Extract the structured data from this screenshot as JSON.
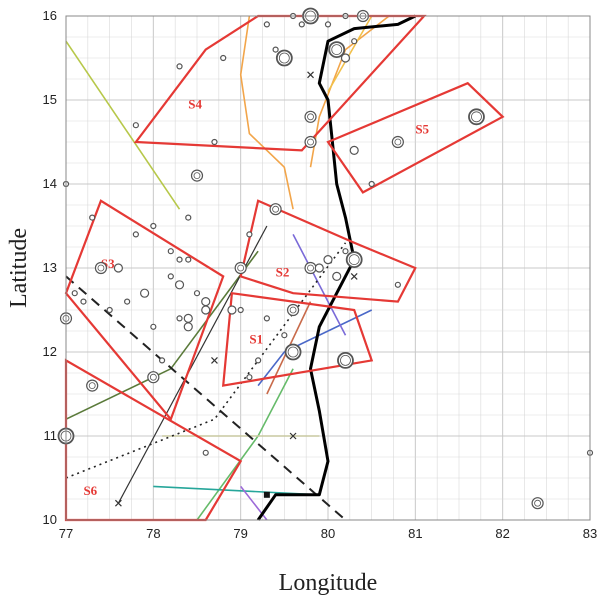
{
  "chart_data": {
    "type": "scatter",
    "xlabel": "Longitude",
    "ylabel": "Latitude",
    "xlim": [
      77,
      83
    ],
    "ylim": [
      10,
      16
    ],
    "xticks": [
      "77",
      "78",
      "79",
      "80",
      "81",
      "82",
      "83"
    ],
    "yticks": [
      "10",
      "11",
      "12",
      "13",
      "14",
      "15",
      "16"
    ],
    "grid": true,
    "colors": {
      "zone": "#e53935",
      "coast": "#000000",
      "epicenter": "#555555",
      "grid": "#d9d9d9"
    },
    "zones": [
      {
        "label": "S1",
        "points": [
          [
            78.8,
            11.6
          ],
          [
            80.5,
            11.9
          ],
          [
            80.3,
            12.5
          ],
          [
            78.9,
            12.7
          ]
        ],
        "label_at": [
          79.1,
          12.1
        ]
      },
      {
        "label": "S2",
        "points": [
          [
            79.0,
            12.9
          ],
          [
            79.2,
            13.8
          ],
          [
            80.3,
            13.3
          ],
          [
            81.0,
            13.0
          ],
          [
            80.8,
            12.6
          ],
          [
            79.6,
            12.7
          ]
        ],
        "label_at": [
          79.4,
          12.9
        ]
      },
      {
        "label": "S3",
        "points": [
          [
            77.0,
            12.7
          ],
          [
            77.4,
            13.8
          ],
          [
            78.8,
            12.9
          ],
          [
            78.2,
            11.2
          ]
        ],
        "label_at": [
          77.4,
          13.0
        ]
      },
      {
        "label": "S4",
        "points": [
          [
            77.8,
            14.5
          ],
          [
            78.6,
            15.6
          ],
          [
            79.2,
            16.0
          ],
          [
            81.1,
            16.0
          ],
          [
            79.7,
            14.4
          ]
        ],
        "label_at": [
          78.4,
          14.9
        ]
      },
      {
        "label": "S5",
        "points": [
          [
            80.0,
            14.5
          ],
          [
            81.6,
            15.2
          ],
          [
            82.0,
            14.8
          ],
          [
            80.4,
            13.9
          ]
        ],
        "label_at": [
          81.0,
          14.6
        ]
      },
      {
        "label": "S6",
        "points": [
          [
            77.0,
            10.0
          ],
          [
            77.0,
            11.9
          ],
          [
            79.0,
            10.7
          ],
          [
            78.6,
            10.0
          ]
        ],
        "label_at": [
          77.2,
          10.3
        ]
      }
    ],
    "coastline": [
      [
        79.2,
        10.0
      ],
      [
        79.4,
        10.3
      ],
      [
        79.6,
        10.3
      ],
      [
        79.9,
        10.3
      ],
      [
        80.0,
        10.7
      ],
      [
        79.9,
        11.3
      ],
      [
        79.8,
        11.8
      ],
      [
        79.9,
        12.3
      ],
      [
        80.1,
        12.7
      ],
      [
        80.3,
        13.1
      ],
      [
        80.2,
        13.6
      ],
      [
        80.1,
        14.0
      ],
      [
        80.05,
        14.5
      ],
      [
        80.0,
        15.0
      ],
      [
        79.9,
        15.2
      ],
      [
        80.0,
        15.7
      ],
      [
        80.3,
        15.85
      ],
      [
        80.8,
        15.9
      ],
      [
        81.0,
        16.0
      ]
    ],
    "lineaments": [
      {
        "color": "#b7c84a",
        "points": [
          [
            77.0,
            15.7
          ],
          [
            78.3,
            13.7
          ]
        ]
      },
      {
        "color": "#f2a54a",
        "points": [
          [
            79.1,
            16.0
          ],
          [
            79.0,
            15.3
          ],
          [
            79.1,
            14.6
          ],
          [
            79.5,
            14.2
          ],
          [
            79.6,
            13.7
          ]
        ]
      },
      {
        "color": "#f2a54a",
        "points": [
          [
            79.8,
            14.2
          ],
          [
            79.9,
            14.8
          ],
          [
            80.2,
            15.6
          ],
          [
            80.7,
            16.0
          ]
        ]
      },
      {
        "color": "#f2c04a",
        "points": [
          [
            80.0,
            15.1
          ],
          [
            80.5,
            16.0
          ]
        ]
      },
      {
        "color": "#4a68c8",
        "points": [
          [
            79.2,
            11.6
          ],
          [
            79.5,
            12.0
          ],
          [
            80.5,
            12.5
          ]
        ]
      },
      {
        "color": "#5a7a3a",
        "points": [
          [
            77.0,
            11.2
          ],
          [
            78.2,
            11.8
          ],
          [
            79.2,
            13.2
          ]
        ]
      },
      {
        "color": "#7a6ad8",
        "points": [
          [
            79.6,
            13.4
          ],
          [
            80.0,
            12.6
          ],
          [
            80.2,
            12.2
          ]
        ]
      },
      {
        "color": "#66bb6a",
        "points": [
          [
            78.5,
            10.0
          ],
          [
            79.2,
            11.0
          ],
          [
            79.6,
            11.8
          ]
        ]
      },
      {
        "color": "#26a69a",
        "points": [
          [
            78.0,
            10.4
          ],
          [
            79.9,
            10.3
          ]
        ]
      },
      {
        "color": "#9c6ad8",
        "points": [
          [
            79.0,
            10.4
          ],
          [
            79.3,
            10.0
          ]
        ]
      },
      {
        "color": "#c8c8a0",
        "points": [
          [
            78.1,
            11.0
          ],
          [
            79.9,
            11.0
          ]
        ]
      },
      {
        "color": "#c86a4a",
        "points": [
          [
            79.3,
            11.5
          ],
          [
            79.8,
            12.6
          ]
        ]
      }
    ],
    "dashed_lines": [
      {
        "style": "dash",
        "points": [
          [
            77.0,
            12.9
          ],
          [
            80.2,
            10.0
          ]
        ]
      },
      {
        "style": "dot",
        "points": [
          [
            77.0,
            10.5
          ],
          [
            78.7,
            11.2
          ],
          [
            80.2,
            13.3
          ]
        ]
      }
    ],
    "profile_line": [
      [
        77.6,
        10.2
      ],
      [
        79.3,
        13.5
      ]
    ],
    "epicenters": [
      {
        "x": 77.3,
        "y": 13.6,
        "m": 1
      },
      {
        "x": 77.1,
        "y": 12.7,
        "m": 1
      },
      {
        "x": 77.2,
        "y": 12.6,
        "m": 1
      },
      {
        "x": 77.4,
        "y": 13.0,
        "m": 3
      },
      {
        "x": 77.6,
        "y": 13.0,
        "m": 2
      },
      {
        "x": 77.5,
        "y": 12.5,
        "m": 1
      },
      {
        "x": 77.7,
        "y": 12.6,
        "m": 1
      },
      {
        "x": 77.8,
        "y": 13.4,
        "m": 1
      },
      {
        "x": 78.0,
        "y": 13.5,
        "m": 1
      },
      {
        "x": 78.2,
        "y": 13.2,
        "m": 1
      },
      {
        "x": 78.3,
        "y": 13.1,
        "m": 1
      },
      {
        "x": 78.4,
        "y": 13.1,
        "m": 1
      },
      {
        "x": 78.2,
        "y": 12.9,
        "m": 1
      },
      {
        "x": 78.3,
        "y": 12.8,
        "m": 2
      },
      {
        "x": 77.9,
        "y": 12.7,
        "m": 2
      },
      {
        "x": 78.0,
        "y": 12.3,
        "m": 1
      },
      {
        "x": 78.4,
        "y": 12.4,
        "m": 2
      },
      {
        "x": 78.3,
        "y": 12.4,
        "m": 1
      },
      {
        "x": 78.4,
        "y": 12.3,
        "m": 2
      },
      {
        "x": 78.6,
        "y": 12.6,
        "m": 2
      },
      {
        "x": 78.6,
        "y": 12.5,
        "m": 2
      },
      {
        "x": 78.5,
        "y": 12.7,
        "m": 1
      },
      {
        "x": 78.9,
        "y": 12.5,
        "m": 2
      },
      {
        "x": 78.0,
        "y": 11.7,
        "m": 3
      },
      {
        "x": 78.1,
        "y": 11.9,
        "m": 1
      },
      {
        "x": 77.3,
        "y": 11.6,
        "m": 3
      },
      {
        "x": 77.0,
        "y": 12.4,
        "m": 3
      },
      {
        "x": 77.0,
        "y": 11.0,
        "m": 4
      },
      {
        "x": 78.6,
        "y": 10.8,
        "m": 1
      },
      {
        "x": 78.4,
        "y": 13.6,
        "m": 1
      },
      {
        "x": 78.5,
        "y": 14.1,
        "m": 3
      },
      {
        "x": 78.7,
        "y": 14.5,
        "m": 1
      },
      {
        "x": 77.8,
        "y": 14.7,
        "m": 1
      },
      {
        "x": 78.3,
        "y": 15.4,
        "m": 1
      },
      {
        "x": 78.8,
        "y": 15.5,
        "m": 1
      },
      {
        "x": 79.0,
        "y": 13.0,
        "m": 3
      },
      {
        "x": 79.0,
        "y": 12.5,
        "m": 1
      },
      {
        "x": 79.1,
        "y": 13.4,
        "m": 1
      },
      {
        "x": 79.4,
        "y": 13.7,
        "m": 3
      },
      {
        "x": 79.6,
        "y": 12.5,
        "m": 3
      },
      {
        "x": 79.6,
        "y": 12.0,
        "m": 4
      },
      {
        "x": 79.5,
        "y": 12.2,
        "m": 1
      },
      {
        "x": 79.3,
        "y": 12.4,
        "m": 1
      },
      {
        "x": 79.1,
        "y": 11.7,
        "m": 1
      },
      {
        "x": 79.2,
        "y": 11.9,
        "m": 1
      },
      {
        "x": 79.8,
        "y": 13.0,
        "m": 3
      },
      {
        "x": 79.9,
        "y": 13.0,
        "m": 2
      },
      {
        "x": 80.0,
        "y": 13.1,
        "m": 2
      },
      {
        "x": 80.1,
        "y": 12.9,
        "m": 2
      },
      {
        "x": 80.2,
        "y": 13.2,
        "m": 1
      },
      {
        "x": 80.3,
        "y": 13.1,
        "m": 4
      },
      {
        "x": 80.2,
        "y": 11.9,
        "m": 4
      },
      {
        "x": 80.8,
        "y": 12.8,
        "m": 1
      },
      {
        "x": 79.8,
        "y": 14.5,
        "m": 3
      },
      {
        "x": 79.8,
        "y": 14.8,
        "m": 3
      },
      {
        "x": 79.4,
        "y": 15.6,
        "m": 1
      },
      {
        "x": 79.5,
        "y": 15.5,
        "m": 4
      },
      {
        "x": 79.7,
        "y": 15.9,
        "m": 1
      },
      {
        "x": 79.8,
        "y": 16.0,
        "m": 4
      },
      {
        "x": 80.0,
        "y": 15.9,
        "m": 1
      },
      {
        "x": 80.1,
        "y": 15.6,
        "m": 4
      },
      {
        "x": 80.2,
        "y": 15.5,
        "m": 2
      },
      {
        "x": 80.3,
        "y": 15.7,
        "m": 1
      },
      {
        "x": 80.4,
        "y": 16.0,
        "m": 3
      },
      {
        "x": 80.2,
        "y": 16.0,
        "m": 1
      },
      {
        "x": 79.6,
        "y": 16.0,
        "m": 1
      },
      {
        "x": 79.3,
        "y": 15.9,
        "m": 1
      },
      {
        "x": 80.3,
        "y": 14.4,
        "m": 2
      },
      {
        "x": 80.8,
        "y": 14.5,
        "m": 3
      },
      {
        "x": 81.7,
        "y": 14.8,
        "m": 4
      },
      {
        "x": 80.5,
        "y": 14.0,
        "m": 1
      },
      {
        "x": 77.0,
        "y": 14.0,
        "m": 1
      },
      {
        "x": 82.4,
        "y": 10.2,
        "m": 3
      },
      {
        "x": 83.0,
        "y": 10.8,
        "m": 1
      }
    ],
    "stations": [
      [
        77.6,
        10.2
      ],
      [
        78.7,
        11.9
      ],
      [
        79.6,
        11.0
      ],
      [
        80.3,
        12.9
      ],
      [
        79.8,
        15.3
      ]
    ],
    "square_marker": [
      79.3,
      10.3
    ]
  }
}
